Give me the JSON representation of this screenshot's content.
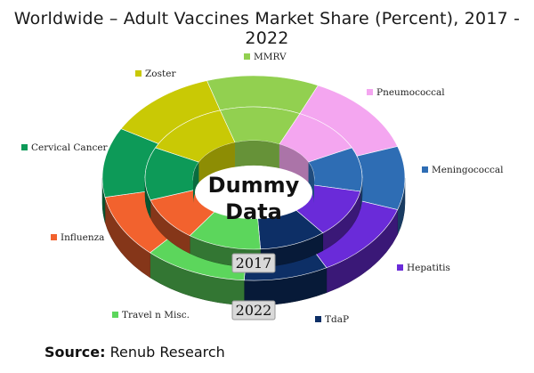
{
  "chart_data": {
    "type": "pie",
    "variant": "double-donut-3d",
    "title": "Worldwide – Adult Vaccines Market Share (Percent), 2017 - 2022",
    "center_label_line1": "Dummy",
    "center_label_line2": "Data",
    "categories": [
      "MMRV",
      "Pneumococcal",
      "Meningococcal",
      "Hepatitis",
      "TdaP",
      "Travel n Misc.",
      "Influenza",
      "Cervical Cancer",
      "Zoster"
    ],
    "colors": [
      "#92d050",
      "#f4a6f0",
      "#2e6db4",
      "#6a2bd9",
      "#0d2f66",
      "#5cd65c",
      "#f2622e",
      "#0d9a58",
      "#c9c905"
    ],
    "series": [
      {
        "name": "2017",
        "ring": "inner",
        "values": [
          12,
          11,
          10,
          11,
          10,
          11,
          10,
          12,
          13
        ]
      },
      {
        "name": "2022",
        "ring": "outer",
        "values": [
          12,
          13,
          10,
          12,
          9,
          11,
          10,
          11,
          12
        ]
      }
    ],
    "legend_placement": "around"
  },
  "source_label": "Source:",
  "source_text": "Renub Research"
}
